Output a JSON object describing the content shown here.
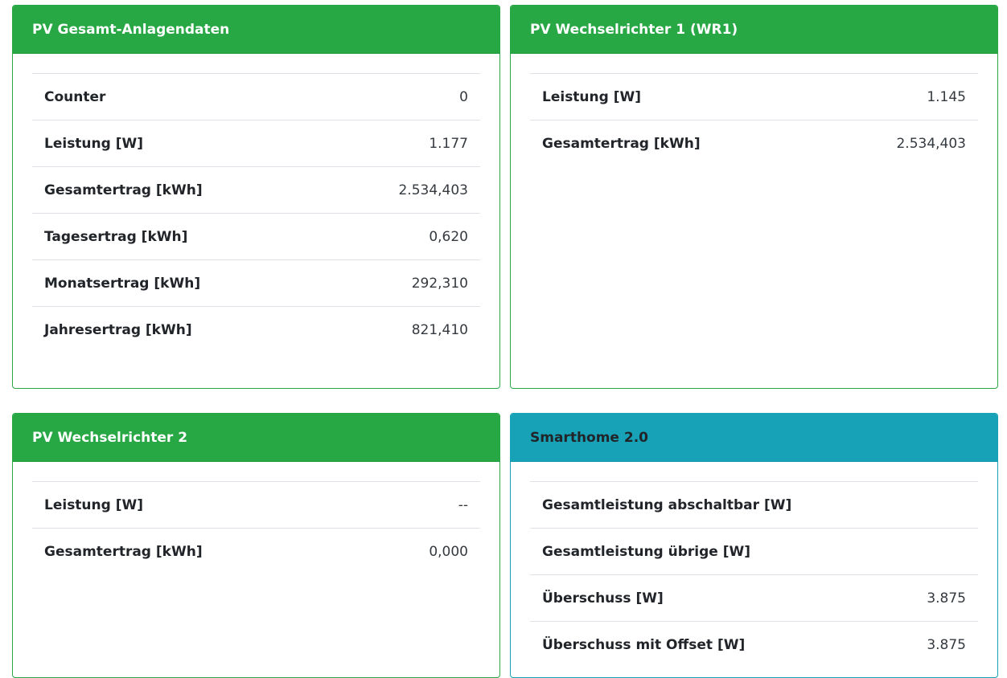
{
  "cards": [
    {
      "title": "PV Gesamt-Anlagendaten",
      "rows": [
        {
          "label": "Counter",
          "value": "0"
        },
        {
          "label": "Leistung [W]",
          "value": "1.177"
        },
        {
          "label": "Gesamtertrag [kWh]",
          "value": "2.534,403"
        },
        {
          "label": "Tagesertrag [kWh]",
          "value": "0,620"
        },
        {
          "label": "Monatsertrag [kWh]",
          "value": "292,310"
        },
        {
          "label": "Jahresertrag [kWh]",
          "value": "821,410"
        }
      ]
    },
    {
      "title": "PV Wechselrichter 1 (WR1)",
      "rows": [
        {
          "label": "Leistung [W]",
          "value": "1.145"
        },
        {
          "label": "Gesamtertrag [kWh]",
          "value": "2.534,403"
        }
      ]
    },
    {
      "title": "PV Wechselrichter 2",
      "rows": [
        {
          "label": "Leistung [W]",
          "value": "--"
        },
        {
          "label": "Gesamtertrag [kWh]",
          "value": "0,000"
        }
      ]
    },
    {
      "title": "Smarthome 2.0",
      "rows": [
        {
          "label": "Gesamtleistung abschaltbar [W]",
          "value": ""
        },
        {
          "label": "Gesamtleistung übrige [W]",
          "value": ""
        },
        {
          "label": "Überschuss [W]",
          "value": "3.875"
        },
        {
          "label": "Überschuss mit Offset [W]",
          "value": "3.875"
        }
      ]
    }
  ],
  "colors": {
    "success": "#28a745",
    "info": "#17a2b8"
  }
}
